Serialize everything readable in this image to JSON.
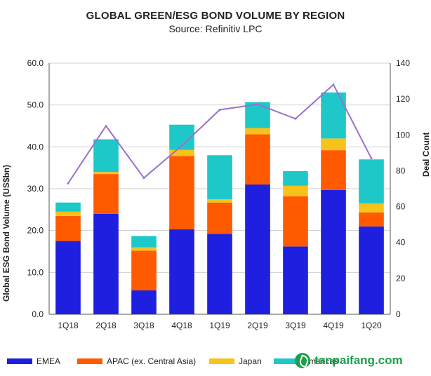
{
  "chart_data": {
    "type": "bar",
    "title": "GLOBAL GREEN/ESG BOND VOLUME BY REGION",
    "subtitle": "Source: Refinitiv LPC",
    "ylabel": "Global ESG Bond Volume (US$bn)",
    "y2label": "Deal Count",
    "categories": [
      "1Q18",
      "2Q18",
      "3Q18",
      "4Q18",
      "1Q19",
      "2Q19",
      "3Q19",
      "4Q19",
      "1Q20"
    ],
    "ylim": [
      0,
      60
    ],
    "y2lim": [
      0,
      140
    ],
    "yticks": [
      "0.0",
      "10.0",
      "20.0",
      "30.0",
      "40.0",
      "50.0",
      "60.0"
    ],
    "y2ticks": [
      "0",
      "20",
      "40",
      "60",
      "80",
      "100",
      "120",
      "140"
    ],
    "series": [
      {
        "name": "EMEA",
        "color": "#1f1fe0",
        "values": [
          17.5,
          24.0,
          5.7,
          20.3,
          19.2,
          31.0,
          16.2,
          29.7,
          21.0
        ]
      },
      {
        "name": "APAC (ex. Central Asia)",
        "color": "#ff5a00",
        "values": [
          6.0,
          9.5,
          9.5,
          17.5,
          7.5,
          12.0,
          12.0,
          9.5,
          3.3
        ]
      },
      {
        "name": "Japan",
        "color": "#f7c21a",
        "values": [
          1.0,
          0.5,
          0.8,
          1.5,
          0.8,
          1.5,
          2.5,
          2.8,
          2.2
        ]
      },
      {
        "name": "Americas",
        "color": "#1ec8c8",
        "values": [
          2.2,
          7.8,
          2.7,
          6.0,
          10.5,
          6.2,
          3.5,
          11.0,
          10.5
        ]
      }
    ],
    "line": {
      "name": "Deal Count",
      "color": "#9a6fd0",
      "values": [
        73,
        105,
        76,
        94,
        114,
        117,
        109,
        128,
        87
      ]
    },
    "grid": true,
    "legend_position": "bottom"
  },
  "legend": [
    {
      "label": "EMEA",
      "color": "#1f1fe0"
    },
    {
      "label": "APAC (ex. Central Asia)",
      "color": "#ff5a00"
    },
    {
      "label": "Japan",
      "color": "#f7c21a"
    },
    {
      "label": "Americas",
      "color": "#1ec8c8"
    }
  ],
  "watermark": {
    "text": "tanpaifang.com",
    "icon": "leaf-icon"
  }
}
